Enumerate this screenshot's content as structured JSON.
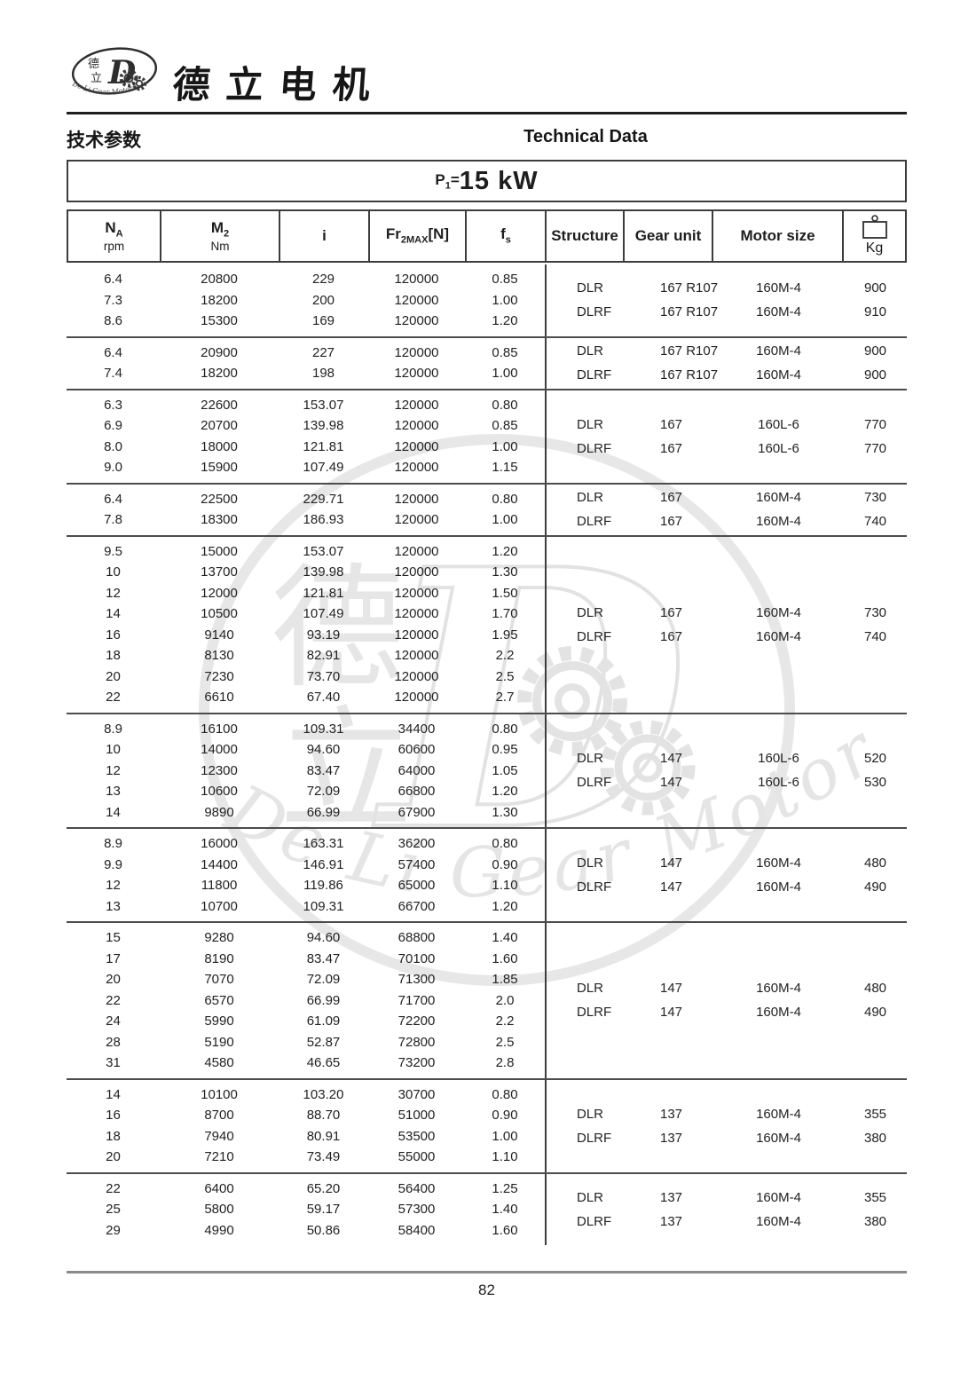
{
  "page": {
    "brand": "德立电机",
    "title_cn": "技术参数",
    "title_en": "Technical Data",
    "power_p": "P",
    "power_sub": "1",
    "power_eq": "=",
    "power_value": "15 kW",
    "page_number": "82",
    "logo": {
      "char_top": "德",
      "char_bottom": "立",
      "letter": "D",
      "arc": "De Li Gear Motor"
    }
  },
  "table": {
    "headers": [
      {
        "main": "N",
        "msub": "A",
        "unit": "rpm"
      },
      {
        "main": "M",
        "msub": "2",
        "unit": "Nm"
      },
      {
        "main": "i"
      },
      {
        "main": "Fr",
        "msub": "2MAX",
        "suffix": "[N]"
      },
      {
        "main": "f",
        "msub": "s"
      },
      {
        "main": "Structure"
      },
      {
        "main": "Gear unit"
      },
      {
        "main": "Motor size"
      },
      {
        "main": "Kg",
        "icon": "weight-icon"
      }
    ],
    "blocks": [
      {
        "rows": [
          [
            "6.4",
            "20800",
            "229",
            "120000",
            "0.85"
          ],
          [
            "7.3",
            "18200",
            "200",
            "120000",
            "1.00"
          ],
          [
            "8.6",
            "15300",
            "169",
            "120000",
            "1.20"
          ]
        ],
        "specs": [
          [
            "DLR",
            "167 R107",
            "160M-4",
            "900"
          ],
          [
            "DLRF",
            "167 R107",
            "160M-4",
            "910"
          ]
        ]
      },
      {
        "rows": [
          [
            "6.4",
            "20900",
            "227",
            "120000",
            "0.85"
          ],
          [
            "7.4",
            "18200",
            "198",
            "120000",
            "1.00"
          ]
        ],
        "specs": [
          [
            "DLR",
            "167 R107",
            "160M-4",
            "900"
          ],
          [
            "DLRF",
            "167 R107",
            "160M-4",
            "900"
          ]
        ]
      },
      {
        "rows": [
          [
            "6.3",
            "22600",
            "153.07",
            "120000",
            "0.80"
          ],
          [
            "6.9",
            "20700",
            "139.98",
            "120000",
            "0.85"
          ],
          [
            "8.0",
            "18000",
            "121.81",
            "120000",
            "1.00"
          ],
          [
            "9.0",
            "15900",
            "107.49",
            "120000",
            "1.15"
          ]
        ],
        "specs": [
          [
            "DLR",
            "167",
            "160L-6",
            "770"
          ],
          [
            "DLRF",
            "167",
            "160L-6",
            "770"
          ]
        ]
      },
      {
        "rows": [
          [
            "6.4",
            "22500",
            "229.71",
            "120000",
            "0.80"
          ],
          [
            "7.8",
            "18300",
            "186.93",
            "120000",
            "1.00"
          ]
        ],
        "specs": [
          [
            "DLR",
            "167",
            "160M-4",
            "730"
          ],
          [
            "DLRF",
            "167",
            "160M-4",
            "740"
          ]
        ]
      },
      {
        "rows": [
          [
            "9.5",
            "15000",
            "153.07",
            "120000",
            "1.20"
          ],
          [
            "10",
            "13700",
            "139.98",
            "120000",
            "1.30"
          ],
          [
            "12",
            "12000",
            "121.81",
            "120000",
            "1.50"
          ],
          [
            "14",
            "10500",
            "107.49",
            "120000",
            "1.70"
          ],
          [
            "16",
            "9140",
            "93.19",
            "120000",
            "1.95"
          ],
          [
            "18",
            "8130",
            "82.91",
            "120000",
            "2.2"
          ],
          [
            "20",
            "7230",
            "73.70",
            "120000",
            "2.5"
          ],
          [
            "22",
            "6610",
            "67.40",
            "120000",
            "2.7"
          ]
        ],
        "specs": [
          [
            "DLR",
            "167",
            "160M-4",
            "730"
          ],
          [
            "DLRF",
            "167",
            "160M-4",
            "740"
          ]
        ]
      },
      {
        "rows": [
          [
            "8.9",
            "16100",
            "109.31",
            "34400",
            "0.80"
          ],
          [
            "10",
            "14000",
            "94.60",
            "60600",
            "0.95"
          ],
          [
            "12",
            "12300",
            "83.47",
            "64000",
            "1.05"
          ],
          [
            "13",
            "10600",
            "72.09",
            "66800",
            "1.20"
          ],
          [
            "14",
            "9890",
            "66.99",
            "67900",
            "1.30"
          ]
        ],
        "specs": [
          [
            "DLR",
            "147",
            "160L-6",
            "520"
          ],
          [
            "DLRF",
            "147",
            "160L-6",
            "530"
          ]
        ]
      },
      {
        "rows": [
          [
            "8.9",
            "16000",
            "163.31",
            "36200",
            "0.80"
          ],
          [
            "9.9",
            "14400",
            "146.91",
            "57400",
            "0.90"
          ],
          [
            "12",
            "11800",
            "119.86",
            "65000",
            "1.10"
          ],
          [
            "13",
            "10700",
            "109.31",
            "66700",
            "1.20"
          ]
        ],
        "specs": [
          [
            "DLR",
            "147",
            "160M-4",
            "480"
          ],
          [
            "DLRF",
            "147",
            "160M-4",
            "490"
          ]
        ]
      },
      {
        "rows": [
          [
            "15",
            "9280",
            "94.60",
            "68800",
            "1.40"
          ],
          [
            "17",
            "8190",
            "83.47",
            "70100",
            "1.60"
          ],
          [
            "20",
            "7070",
            "72.09",
            "71300",
            "1.85"
          ],
          [
            "22",
            "6570",
            "66.99",
            "71700",
            "2.0"
          ],
          [
            "24",
            "5990",
            "61.09",
            "72200",
            "2.2"
          ],
          [
            "28",
            "5190",
            "52.87",
            "72800",
            "2.5"
          ],
          [
            "31",
            "4580",
            "46.65",
            "73200",
            "2.8"
          ]
        ],
        "specs": [
          [
            "DLR",
            "147",
            "160M-4",
            "480"
          ],
          [
            "DLRF",
            "147",
            "160M-4",
            "490"
          ]
        ]
      },
      {
        "rows": [
          [
            "14",
            "10100",
            "103.20",
            "30700",
            "0.80"
          ],
          [
            "16",
            "8700",
            "88.70",
            "51000",
            "0.90"
          ],
          [
            "18",
            "7940",
            "80.91",
            "53500",
            "1.00"
          ],
          [
            "20",
            "7210",
            "73.49",
            "55000",
            "1.10"
          ]
        ],
        "specs": [
          [
            "DLR",
            "137",
            "160M-4",
            "355"
          ],
          [
            "DLRF",
            "137",
            "160M-4",
            "380"
          ]
        ]
      },
      {
        "rows": [
          [
            "22",
            "6400",
            "65.20",
            "56400",
            "1.25"
          ],
          [
            "25",
            "5800",
            "59.17",
            "57300",
            "1.40"
          ],
          [
            "29",
            "4990",
            "50.86",
            "58400",
            "1.60"
          ]
        ],
        "specs": [
          [
            "DLR",
            "137",
            "160M-4",
            "355"
          ],
          [
            "DLRF",
            "137",
            "160M-4",
            "380"
          ]
        ]
      }
    ]
  }
}
